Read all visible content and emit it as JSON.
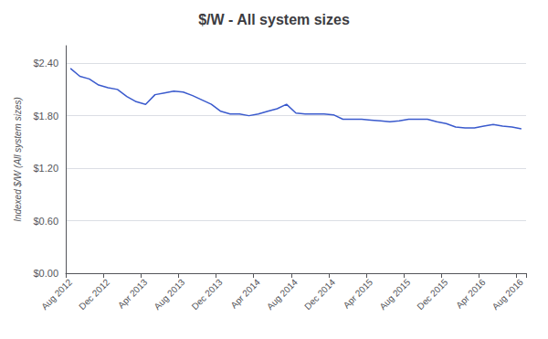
{
  "chart_data": {
    "type": "line",
    "title": "$/W - All system sizes",
    "ylabel": "Indexed $/W (All system sizes)",
    "categories": [
      "Aug 2012",
      null,
      null,
      null,
      "Dec 2012",
      null,
      null,
      null,
      "Apr 2013",
      null,
      null,
      null,
      "Aug 2013",
      null,
      null,
      null,
      "Dec 2013",
      null,
      null,
      null,
      "Apr 2014",
      null,
      null,
      null,
      "Aug 2014",
      null,
      null,
      null,
      "Dec 2014",
      null,
      null,
      null,
      "Apr 2015",
      null,
      null,
      null,
      "Aug 2015",
      null,
      null,
      null,
      "Dec 2015",
      null,
      null,
      null,
      "Apr 2016",
      null,
      null,
      null,
      "Aug 2016"
    ],
    "values": [
      2.34,
      2.25,
      2.22,
      2.15,
      2.12,
      2.1,
      2.02,
      1.96,
      1.93,
      2.04,
      2.06,
      2.08,
      2.07,
      2.03,
      1.98,
      1.93,
      1.85,
      1.82,
      1.82,
      1.8,
      1.82,
      1.85,
      1.88,
      1.93,
      1.83,
      1.82,
      1.82,
      1.82,
      1.81,
      1.76,
      1.76,
      1.76,
      1.75,
      1.74,
      1.73,
      1.74,
      1.76,
      1.76,
      1.76,
      1.73,
      1.71,
      1.67,
      1.66,
      1.66,
      1.68,
      1.7,
      1.68,
      1.67,
      1.65
    ],
    "color": "#3a5acd",
    "ylim": [
      0.0,
      2.6
    ],
    "yticks": [
      {
        "value": 0.0,
        "label": "$0.00"
      },
      {
        "value": 0.6,
        "label": "$0.60"
      },
      {
        "value": 1.2,
        "label": "$1.20"
      },
      {
        "value": 1.8,
        "label": "$1.80"
      },
      {
        "value": 2.4,
        "label": "$2.40"
      }
    ],
    "grid": true
  }
}
